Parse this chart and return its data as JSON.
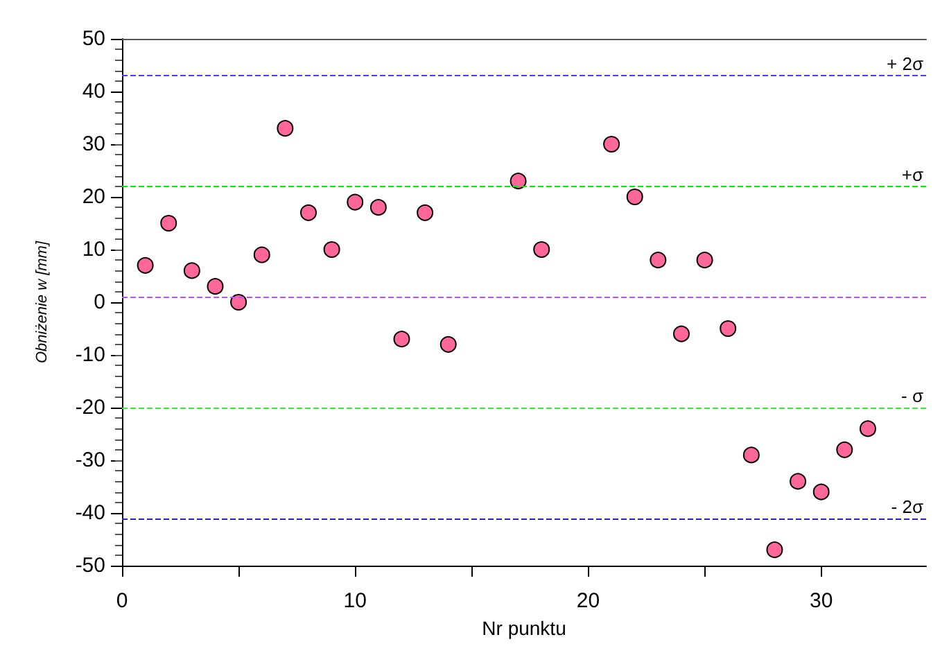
{
  "chart_data": {
    "type": "scatter",
    "xlabel": "Nr punktu",
    "ylabel": "Obniżenie w [mm]",
    "x": [
      1,
      2,
      3,
      4,
      5,
      6,
      7,
      8,
      9,
      10,
      11,
      12,
      13,
      14,
      17,
      18,
      21,
      22,
      23,
      24,
      25,
      26,
      27,
      28,
      29,
      30,
      31,
      32
    ],
    "series": [
      {
        "color": "#ff6699",
        "values": [
          7,
          15,
          6,
          3,
          0,
          9,
          33,
          17,
          10,
          19,
          18,
          -7,
          17,
          -8,
          23,
          10,
          30,
          20,
          8,
          -6,
          8,
          -5,
          -29,
          -47,
          -34,
          -36,
          -28,
          -24
        ]
      }
    ],
    "marker": "circle",
    "xlim": [
      0,
      34.5
    ],
    "xticks": [
      0,
      {
        "value": 5,
        "label": null
      },
      10,
      {
        "value": 15,
        "label": null
      },
      20,
      {
        "value": 25,
        "label": null
      },
      30
    ],
    "ylim": [
      -50,
      50
    ],
    "yticks": [
      -50,
      -40,
      -30,
      -20,
      -10,
      0,
      10,
      20,
      30,
      40,
      50
    ],
    "ref_lines": [
      {
        "axis": "y",
        "value": 43,
        "label": "+ 2σ",
        "color": "#4040ff",
        "line_style": "dashed"
      },
      {
        "axis": "y",
        "value": 22,
        "label": "+σ",
        "color": "#00ee00",
        "line_style": "dashed"
      },
      {
        "axis": "y",
        "value": 1,
        "label": null,
        "color": "#bb55ee",
        "line_style": "dashed"
      },
      {
        "axis": "y",
        "value": -20,
        "label": "- σ",
        "color": "#33ee33",
        "line_style": "dashed"
      },
      {
        "axis": "y",
        "value": -41,
        "label": "- 2σ",
        "color": "#2020cc",
        "line_style": "dashed"
      }
    ],
    "grid": false
  }
}
